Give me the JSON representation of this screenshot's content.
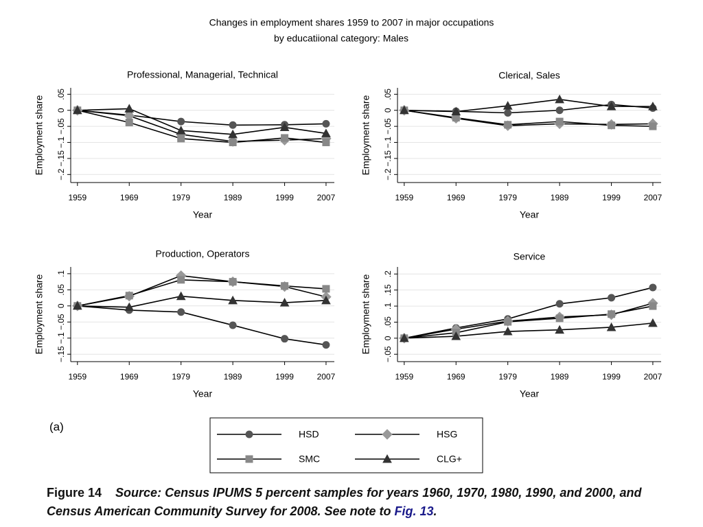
{
  "figure": {
    "title_line1": "Changes in employment shares 1959 to 2007 in major occupations",
    "title_line2": "by educatiional category: Males",
    "panel_label": "(a)",
    "caption_label": "Figure 14",
    "caption_text": "Source: Census IPUMS 5 percent samples for years 1960, 1970, 1980, 1990, and 2000, and Census American Community Survey for 2008. See note to ",
    "caption_link": "Fig. 13",
    "caption_end": "."
  },
  "legend": [
    {
      "name": "HSD",
      "color": "#555555",
      "marker": "circle"
    },
    {
      "name": "HSG",
      "color": "#999999",
      "marker": "diamond"
    },
    {
      "name": "SMC",
      "color": "#888888",
      "marker": "square"
    },
    {
      "name": "CLG+",
      "color": "#333333",
      "marker": "triangle"
    }
  ],
  "chart_data": [
    {
      "type": "line",
      "title": "Professional, Managerial, Technical",
      "xlabel": "Year",
      "ylabel": "Employment share",
      "x": [
        1959,
        1969,
        1979,
        1989,
        1999,
        2007
      ],
      "xlim": [
        1957.7,
        2008.6
      ],
      "xticks": [
        1959,
        1969,
        1979,
        1989,
        1999,
        2007
      ],
      "ylim": [
        -0.225,
        0.07
      ],
      "grid": true,
      "yticks": [
        {
          "value": -0.2,
          "label": "−.2"
        },
        {
          "value": -0.15,
          "label": "−.15"
        },
        {
          "value": -0.1,
          "label": "−.1"
        },
        {
          "value": -0.05,
          "label": "−.05"
        },
        0,
        {
          "value": 0.05,
          "label": ".05"
        }
      ],
      "series": [
        {
          "values": [
            0,
            -0.015,
            -0.035,
            -0.046,
            -0.045,
            -0.042
          ]
        },
        {
          "values": [
            0,
            -0.017,
            -0.075,
            -0.097,
            -0.093,
            -0.088
          ]
        },
        {
          "values": [
            0,
            -0.038,
            -0.088,
            -0.1,
            -0.086,
            -0.1
          ]
        },
        {
          "values": [
            0,
            0.005,
            -0.063,
            -0.075,
            -0.053,
            -0.072
          ]
        }
      ]
    },
    {
      "type": "line",
      "title": "Clerical, Sales",
      "xlabel": "Year",
      "ylabel": "Employment share",
      "x": [
        1959,
        1969,
        1979,
        1989,
        1999,
        2007
      ],
      "xlim": [
        1957.7,
        2008.6
      ],
      "xticks": [
        1959,
        1969,
        1979,
        1989,
        1999,
        2007
      ],
      "ylim": [
        -0.225,
        0.07
      ],
      "grid": true,
      "yticks": [
        {
          "value": -0.2,
          "label": "−.2"
        },
        {
          "value": -0.15,
          "label": "−.15"
        },
        {
          "value": -0.1,
          "label": "−.1"
        },
        {
          "value": -0.05,
          "label": "−.05"
        },
        0,
        {
          "value": 0.05,
          "label": ".05"
        }
      ],
      "series": [
        {
          "values": [
            0,
            -0.003,
            -0.008,
            0,
            0.018,
            0.007
          ]
        },
        {
          "values": [
            0,
            -0.025,
            -0.048,
            -0.042,
            -0.044,
            -0.042
          ]
        },
        {
          "values": [
            0,
            -0.023,
            -0.045,
            -0.035,
            -0.047,
            -0.05
          ]
        },
        {
          "values": [
            0,
            -0.004,
            0.014,
            0.034,
            0.012,
            0.012
          ]
        }
      ]
    },
    {
      "type": "line",
      "title": "Production, Operators",
      "xlabel": "Year",
      "ylabel": "Employment share",
      "x": [
        1959,
        1969,
        1979,
        1989,
        1999,
        2007
      ],
      "xlim": [
        1957.7,
        2008.6
      ],
      "xticks": [
        1959,
        1969,
        1979,
        1989,
        1999,
        2007
      ],
      "ylim": [
        -0.173,
        0.121
      ],
      "grid": true,
      "yticks": [
        {
          "value": -0.15,
          "label": "−.15"
        },
        {
          "value": -0.1,
          "label": "−.1"
        },
        {
          "value": -0.05,
          "label": "−.05"
        },
        0,
        {
          "value": 0.05,
          "label": ".05"
        },
        {
          "value": 0.1,
          "label": ".1"
        }
      ],
      "series": [
        {
          "values": [
            0,
            -0.013,
            -0.019,
            -0.06,
            -0.102,
            -0.121
          ]
        },
        {
          "values": [
            0,
            0.03,
            0.094,
            0.075,
            0.06,
            0.028
          ]
        },
        {
          "values": [
            0,
            0.032,
            0.081,
            0.075,
            0.062,
            0.053
          ]
        },
        {
          "values": [
            0,
            -0.004,
            0.03,
            0.017,
            0.01,
            0.017
          ]
        }
      ]
    },
    {
      "type": "line",
      "title": "Service",
      "xlabel": "Year",
      "ylabel": "Employment share",
      "x": [
        1959,
        1969,
        1979,
        1989,
        1999,
        2007
      ],
      "xlim": [
        1957.7,
        2008.6
      ],
      "xticks": [
        1959,
        1969,
        1979,
        1989,
        1999,
        2007
      ],
      "ylim": [
        -0.073,
        0.222
      ],
      "grid": true,
      "yticks": [
        {
          "value": -0.05,
          "label": "−.05"
        },
        0,
        {
          "value": 0.05,
          "label": ".05"
        },
        {
          "value": 0.1,
          "label": ".1"
        },
        {
          "value": 0.15,
          "label": ".15"
        },
        {
          "value": 0.2,
          "label": ".2"
        }
      ],
      "series": [
        {
          "values": [
            0,
            0.032,
            0.06,
            0.107,
            0.126,
            0.158
          ]
        },
        {
          "values": [
            0,
            0.028,
            0.053,
            0.066,
            0.073,
            0.109
          ]
        },
        {
          "values": [
            0,
            0.017,
            0.051,
            0.062,
            0.075,
            0.1
          ]
        },
        {
          "values": [
            0,
            0.006,
            0.021,
            0.026,
            0.034,
            0.047
          ]
        }
      ]
    }
  ]
}
